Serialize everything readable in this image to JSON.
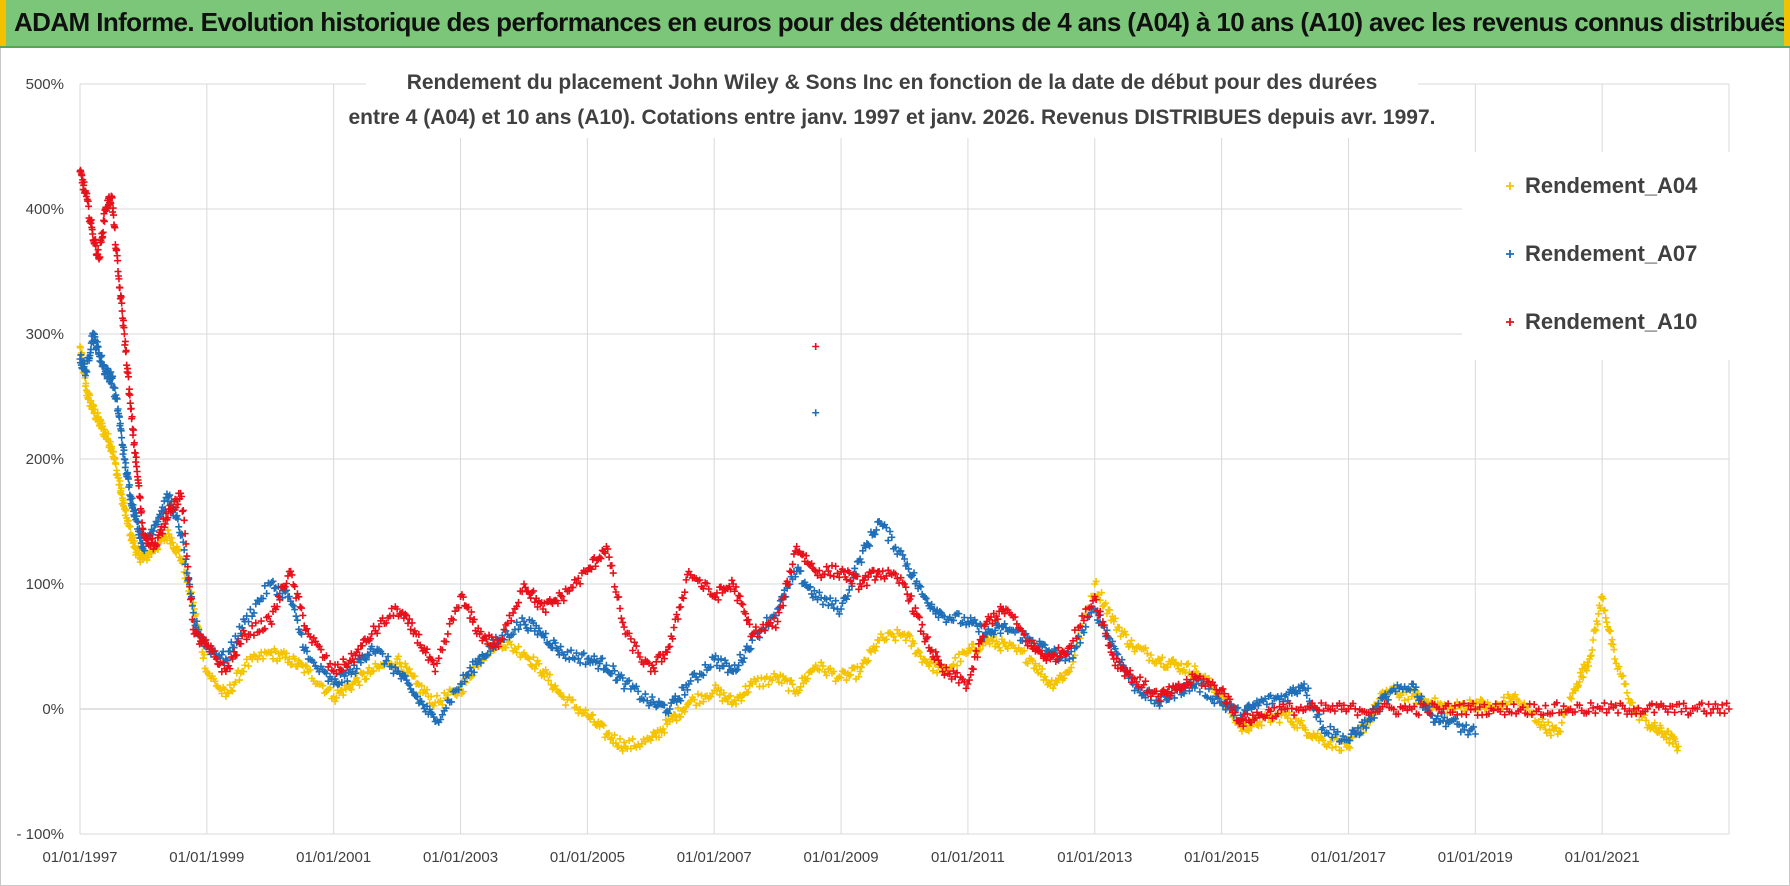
{
  "header": {
    "title": "ADAM Informe. Evolution historique des performances en euros pour des détentions de 4 ans (A04) à 10 ans (A10) avec les revenus connus distribués"
  },
  "colors": {
    "banner": "#7cc679",
    "A04": "#f5c400",
    "A07": "#1f6fb8",
    "A10": "#e8101a",
    "grid": "#d9d9d9"
  },
  "chart_data": {
    "type": "scatter",
    "title_line1": "Rendement du placement John Wiley & Sons Inc en fonction de la date de début pour des durées",
    "title_line2": "entre 4 (A04) et 10 ans (A10).  Cotations entre janv. 1997 et janv. 2026. Revenus DISTRIBUES depuis avr. 1997.",
    "xlim": [
      1997.0,
      2023.0
    ],
    "ylim": [
      -100,
      500
    ],
    "y_ticks": [
      -100,
      0,
      100,
      200,
      300,
      400,
      500
    ],
    "y_tick_labels": [
      "- 100%",
      "0%",
      "100%",
      "200%",
      "300%",
      "400%",
      "500%"
    ],
    "x_ticks": [
      1997,
      1999,
      2001,
      2003,
      2005,
      2007,
      2009,
      2011,
      2013,
      2015,
      2017,
      2019,
      2021
    ],
    "x_tick_labels": [
      "01/01/1997",
      "01/01/1999",
      "01/01/2001",
      "01/01/2003",
      "01/01/2005",
      "01/01/2007",
      "01/01/2009",
      "01/01/2011",
      "01/01/2013",
      "01/01/2015",
      "01/01/2017",
      "01/01/2019",
      "01/01/2021"
    ],
    "grid": true,
    "legend_position": "top-right",
    "marker": "+",
    "series": [
      {
        "name": "Rendement_A04",
        "x": [
          1997.0,
          1997.1,
          1997.2,
          1997.3,
          1997.4,
          1997.5,
          1997.6,
          1997.7,
          1997.8,
          1997.9,
          1998.0,
          1998.2,
          1998.4,
          1998.6,
          1998.8,
          1999.0,
          1999.3,
          1999.6,
          2000.0,
          2000.3,
          2000.6,
          2001.0,
          2001.3,
          2001.6,
          2002.0,
          2002.3,
          2002.6,
          2003.0,
          2003.3,
          2003.6,
          2004.0,
          2004.3,
          2004.6,
          2005.0,
          2005.3,
          2005.6,
          2006.0,
          2006.3,
          2006.6,
          2007.0,
          2007.3,
          2007.6,
          2008.0,
          2008.3,
          2008.6,
          2009.0,
          2009.3,
          2009.6,
          2010.0,
          2010.3,
          2010.6,
          2011.0,
          2011.3,
          2011.6,
          2012.0,
          2012.3,
          2012.6,
          2013.0,
          2013.3,
          2013.6,
          2014.0,
          2014.3,
          2014.6,
          2015.0,
          2015.3,
          2015.6,
          2016.0,
          2016.3,
          2016.6,
          2017.0,
          2017.3,
          2017.6,
          2018.0,
          2018.3,
          2018.6,
          2019.0,
          2019.3,
          2019.6,
          2020.0,
          2020.3,
          2020.6,
          2020.8,
          2021.0,
          2021.2,
          2021.5,
          2021.8,
          2022.0,
          2022.2
        ],
        "values": [
          290,
          255,
          240,
          230,
          220,
          210,
          185,
          160,
          140,
          125,
          120,
          130,
          140,
          120,
          80,
          30,
          10,
          35,
          45,
          40,
          30,
          10,
          20,
          30,
          40,
          20,
          5,
          15,
          40,
          55,
          45,
          30,
          10,
          -5,
          -20,
          -30,
          -25,
          -10,
          5,
          15,
          5,
          20,
          25,
          15,
          35,
          25,
          30,
          55,
          60,
          40,
          30,
          45,
          55,
          50,
          40,
          20,
          30,
          100,
          70,
          50,
          40,
          35,
          30,
          10,
          -15,
          -10,
          -5,
          -15,
          -25,
          -30,
          -10,
          15,
          10,
          5,
          0,
          5,
          0,
          10,
          -10,
          -20,
          20,
          40,
          90,
          40,
          0,
          -15,
          -20,
          -30
        ]
      },
      {
        "name": "Rendement_A07",
        "x": [
          1997.0,
          1997.1,
          1997.2,
          1997.3,
          1997.4,
          1997.5,
          1997.6,
          1997.7,
          1997.8,
          1997.9,
          1998.0,
          1998.2,
          1998.4,
          1998.6,
          1998.8,
          1999.0,
          1999.3,
          1999.6,
          2000.0,
          2000.3,
          2000.6,
          2001.0,
          2001.3,
          2001.6,
          2002.0,
          2002.3,
          2002.6,
          2003.0,
          2003.3,
          2003.6,
          2004.0,
          2004.3,
          2004.6,
          2005.0,
          2005.3,
          2005.6,
          2006.0,
          2006.3,
          2006.6,
          2007.0,
          2007.3,
          2007.6,
          2008.0,
          2008.3,
          2008.6,
          2009.0,
          2009.3,
          2009.6,
          2010.0,
          2010.3,
          2010.6,
          2011.0,
          2011.3,
          2011.6,
          2012.0,
          2012.3,
          2012.6,
          2013.0,
          2013.3,
          2013.6,
          2014.0,
          2014.3,
          2014.6,
          2015.0,
          2015.3,
          2015.6,
          2016.0,
          2016.3,
          2016.6,
          2017.0,
          2017.3,
          2017.6,
          2018.0,
          2018.3,
          2018.6,
          2019.0
        ],
        "values": [
          280,
          270,
          300,
          285,
          270,
          265,
          240,
          200,
          170,
          150,
          130,
          150,
          170,
          140,
          70,
          50,
          40,
          70,
          100,
          90,
          40,
          20,
          30,
          50,
          30,
          10,
          -10,
          20,
          40,
          55,
          70,
          60,
          45,
          40,
          35,
          20,
          5,
          0,
          20,
          40,
          30,
          55,
          80,
          110,
          90,
          80,
          120,
          150,
          120,
          90,
          75,
          70,
          60,
          65,
          55,
          45,
          40,
          80,
          50,
          20,
          5,
          15,
          20,
          5,
          -5,
          5,
          10,
          20,
          -15,
          -25,
          -10,
          10,
          20,
          -5,
          -10,
          -20
        ]
      },
      {
        "name": "Rendement_A10",
        "x": [
          1997.0,
          1997.1,
          1997.2,
          1997.3,
          1997.4,
          1997.5,
          1997.6,
          1997.7,
          1997.8,
          1997.9,
          1998.0,
          1998.2,
          1998.4,
          1998.6,
          1998.8,
          1999.0,
          1999.3,
          1999.6,
          2000.0,
          2000.3,
          2000.6,
          2001.0,
          2001.3,
          2001.6,
          2002.0,
          2002.3,
          2002.6,
          2003.0,
          2003.3,
          2003.6,
          2004.0,
          2004.3,
          2004.6,
          2005.0,
          2005.3,
          2005.6,
          2006.0,
          2006.3,
          2006.6,
          2007.0,
          2007.3,
          2007.6,
          2008.0,
          2008.3,
          2008.6,
          2009.0,
          2009.3,
          2009.6,
          2010.0,
          2010.3,
          2010.6,
          2011.0,
          2011.3,
          2011.6,
          2012.0,
          2012.3,
          2012.6,
          2013.0,
          2013.3,
          2013.6,
          2014.0,
          2014.3,
          2014.6,
          2015.0,
          2015.3,
          2015.6,
          2016.0,
          2016.5,
          2017.0,
          2017.5,
          2018.0,
          2018.5,
          2019.0,
          2019.5,
          2020.0,
          2020.5,
          2021.0,
          2021.5,
          2022.0,
          2022.5,
          2023.0
        ],
        "values": [
          430,
          410,
          380,
          360,
          400,
          410,
          350,
          300,
          240,
          190,
          140,
          130,
          160,
          170,
          60,
          50,
          30,
          60,
          70,
          110,
          60,
          30,
          40,
          60,
          80,
          60,
          30,
          90,
          60,
          50,
          100,
          80,
          90,
          110,
          130,
          60,
          30,
          50,
          110,
          90,
          100,
          60,
          70,
          130,
          110,
          110,
          100,
          110,
          100,
          60,
          30,
          20,
          70,
          80,
          50,
          40,
          50,
          90,
          40,
          25,
          10,
          15,
          25,
          15,
          -10,
          -5,
          0,
          0,
          0,
          0,
          0,
          0,
          0,
          0,
          0,
          0,
          0,
          0,
          0,
          0,
          0
        ]
      }
    ],
    "outliers": [
      {
        "series": "Rendement_A10",
        "x": 2008.6,
        "value": 290
      },
      {
        "series": "Rendement_A07",
        "x": 2008.6,
        "value": 237
      }
    ]
  }
}
